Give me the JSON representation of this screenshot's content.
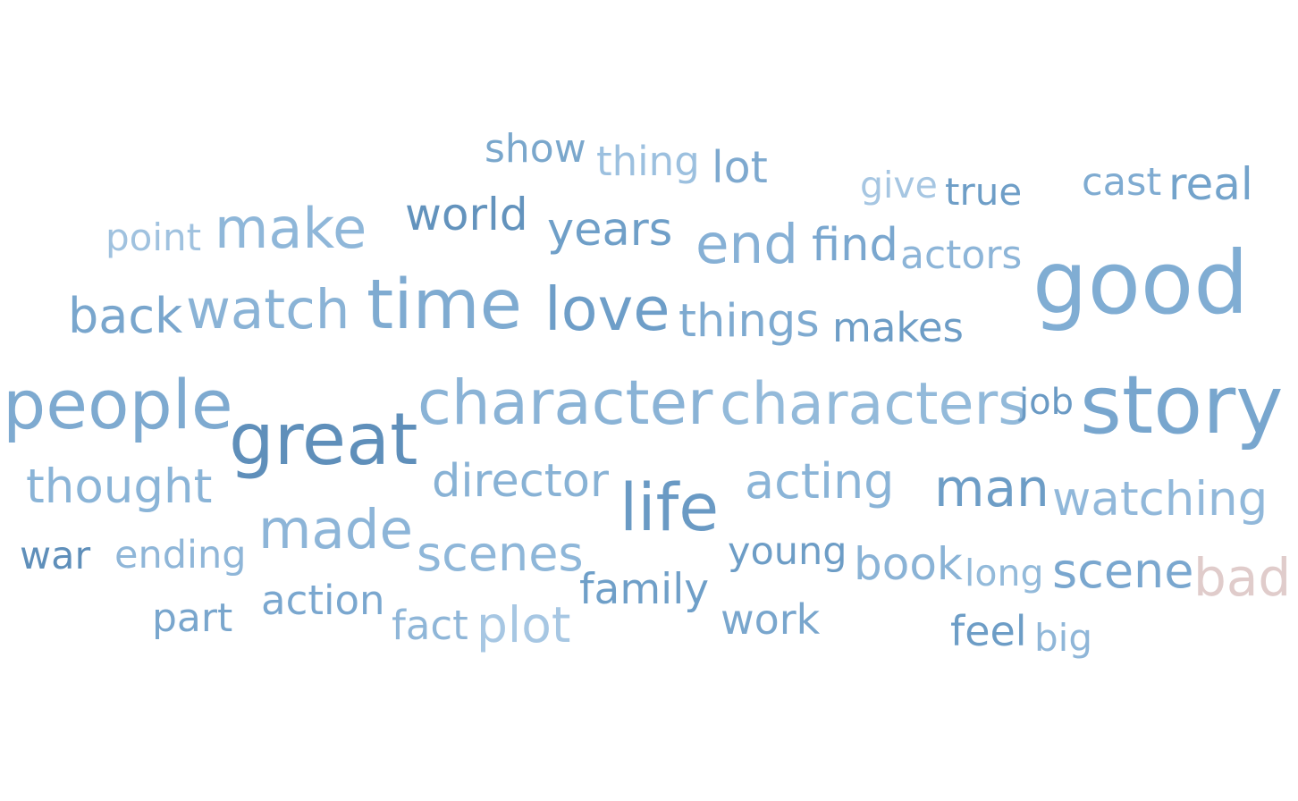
{
  "words": [
    {
      "text": "show",
      "color": "#7aa7cc"
    },
    {
      "text": "thing",
      "color": "#9cc0df"
    },
    {
      "text": "lot",
      "color": "#7ea9cf"
    },
    {
      "text": "give",
      "color": "#a6c6e2"
    },
    {
      "text": "true",
      "color": "#6e9ec7"
    },
    {
      "text": "cast",
      "color": "#7fabd1"
    },
    {
      "text": "real",
      "color": "#73a3cb"
    },
    {
      "text": "point",
      "color": "#a0c2df"
    },
    {
      "text": "make",
      "color": "#8fb7d9"
    },
    {
      "text": "world",
      "color": "#6393bd"
    },
    {
      "text": "years",
      "color": "#6f9fc8"
    },
    {
      "text": "end",
      "color": "#86b0d5"
    },
    {
      "text": "find",
      "color": "#7aa7cf"
    },
    {
      "text": "actors",
      "color": "#8db5d8"
    },
    {
      "text": "good",
      "color": "#80add3"
    },
    {
      "text": "back",
      "color": "#79a6cd"
    },
    {
      "text": "watch",
      "color": "#8ab3d6"
    },
    {
      "text": "time",
      "color": "#7fabd1"
    },
    {
      "text": "love",
      "color": "#6e9ec8"
    },
    {
      "text": "things",
      "color": "#7eaad0"
    },
    {
      "text": "makes",
      "color": "#6d9dc6"
    },
    {
      "text": "people",
      "color": "#7eaad0"
    },
    {
      "text": "great",
      "color": "#5f8fba"
    },
    {
      "text": "character",
      "color": "#8ab3d6"
    },
    {
      "text": "characters",
      "color": "#93bada"
    },
    {
      "text": "job",
      "color": "#6a9ac4"
    },
    {
      "text": "story",
      "color": "#78a6ce"
    },
    {
      "text": "thought",
      "color": "#8ab4d7"
    },
    {
      "text": "director",
      "color": "#88b2d5"
    },
    {
      "text": "life",
      "color": "#6a9ac4"
    },
    {
      "text": "acting",
      "color": "#8ab4d7"
    },
    {
      "text": "man",
      "color": "#6d9dc6"
    },
    {
      "text": "watching",
      "color": "#91b8da"
    },
    {
      "text": "made",
      "color": "#8db5d8"
    },
    {
      "text": "war",
      "color": "#5f8fba"
    },
    {
      "text": "ending",
      "color": "#8fb6d8"
    },
    {
      "text": "scenes",
      "color": "#8fb7d9"
    },
    {
      "text": "young",
      "color": "#6d9dc6"
    },
    {
      "text": "book",
      "color": "#8ab3d6"
    },
    {
      "text": "long",
      "color": "#93bada"
    },
    {
      "text": "scene",
      "color": "#7aa7cf"
    },
    {
      "text": "bad",
      "color": "#e0cccb"
    },
    {
      "text": "family",
      "color": "#6f9fc8"
    },
    {
      "text": "action",
      "color": "#7aa7cf"
    },
    {
      "text": "part",
      "color": "#79a6cd"
    },
    {
      "text": "fact",
      "color": "#8fb6d8"
    },
    {
      "text": "plot",
      "color": "#a7c7e3"
    },
    {
      "text": "work",
      "color": "#79a6cd"
    },
    {
      "text": "feel",
      "color": "#6d9dc6"
    },
    {
      "text": "big",
      "color": "#8fb6d8"
    }
  ]
}
